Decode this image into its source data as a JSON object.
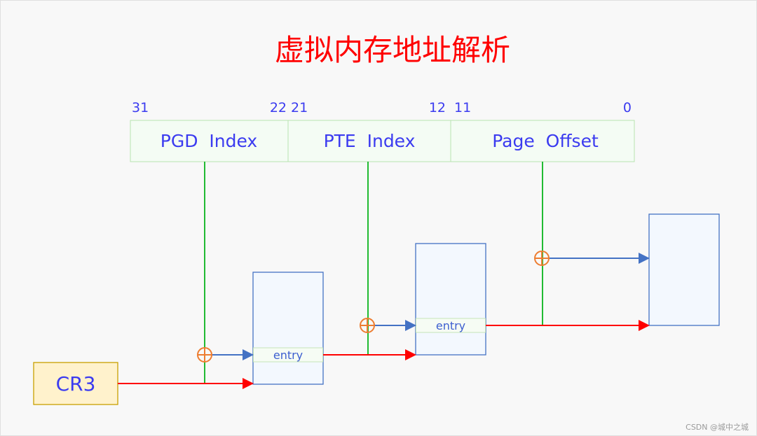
{
  "title": "虚拟内存地址解析",
  "address_fields": [
    {
      "label": "PGD  Index",
      "high_bit": "31",
      "low_bit": "22"
    },
    {
      "label": "PTE  Index",
      "high_bit": "21",
      "low_bit": "12"
    },
    {
      "label": "Page  Offset",
      "high_bit": "11",
      "low_bit": "0"
    }
  ],
  "register": {
    "label": "CR3"
  },
  "tables": [
    {
      "entry_label": "entry"
    },
    {
      "entry_label": "entry"
    }
  ],
  "watermark": "CSDN @城中之城",
  "colors": {
    "title": "#ff0000",
    "text": "#3b3bf0",
    "index_line": "#22bb33",
    "base_pointer_arrow": "#ff0000",
    "offset_arrow": "#4472c4",
    "adder": "#ed7d31",
    "register_fill": "#fff2cc",
    "table_stroke": "#4472c4"
  }
}
